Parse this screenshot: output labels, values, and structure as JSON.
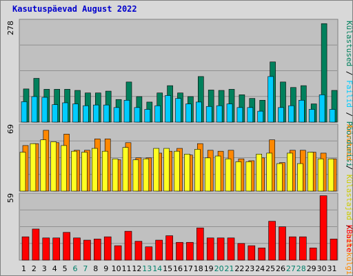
{
  "title": "Kasutuspäevad August 2022",
  "colors": {
    "background": "#d8d8d8",
    "panel": "#c0c0c0",
    "visits": "#00805c",
    "files": "#00ccff",
    "kbytes": "#ff0000",
    "pages": "#ff8800",
    "hits": "#ffff22",
    "weekday_tick": "#000000",
    "weekend_tick": "#00806a",
    "title": "#0000cc"
  },
  "chart_data": [
    {
      "type": "bar",
      "panel": "top",
      "ymax_label": "278",
      "ylim": [
        0,
        278
      ],
      "categories": [
        "1",
        "2",
        "3",
        "4",
        "5",
        "6",
        "7",
        "8",
        "9",
        "10",
        "11",
        "12",
        "13",
        "14",
        "15",
        "16",
        "17",
        "18",
        "19",
        "20",
        "21",
        "22",
        "23",
        "24",
        "25",
        "26",
        "27",
        "28",
        "29",
        "30",
        "31"
      ],
      "weekend_days": [
        "6",
        "7",
        "13",
        "14",
        "20",
        "21",
        "27",
        "28"
      ],
      "series": [
        {
          "name": "Külastused",
          "values": [
            91,
            120,
            90,
            90,
            90,
            87,
            80,
            80,
            85,
            62,
            110,
            70,
            55,
            80,
            100,
            80,
            70,
            125,
            88,
            87,
            90,
            75,
            65,
            60,
            165,
            110,
            95,
            100,
            50,
            270,
            87
          ]
        },
        {
          "name": "Failid",
          "values": [
            56,
            70,
            68,
            48,
            53,
            50,
            45,
            47,
            47,
            40,
            60,
            40,
            35,
            45,
            73,
            65,
            50,
            55,
            43,
            45,
            50,
            40,
            40,
            30,
            125,
            40,
            45,
            60,
            35,
            75,
            35
          ]
        }
      ],
      "side_labels": [
        "Külastused",
        "Failid",
        "Pöördumisi"
      ]
    },
    {
      "type": "bar",
      "panel": "middle",
      "ymax_label": "69",
      "ylim": [
        0,
        69
      ],
      "categories": [
        "1",
        "2",
        "3",
        "4",
        "5",
        "6",
        "7",
        "8",
        "9",
        "10",
        "11",
        "12",
        "13",
        "14",
        "15",
        "16",
        "17",
        "18",
        "19",
        "20",
        "21",
        "22",
        "23",
        "24",
        "25",
        "26",
        "27",
        "28",
        "29",
        "30",
        "31"
      ],
      "series": [
        {
          "name": "Külastajad",
          "values": [
            41,
            50,
            54,
            52,
            48,
            42,
            41,
            45,
            42,
            34,
            46,
            33,
            34,
            45,
            45,
            42,
            39,
            44,
            35,
            37,
            34,
            31,
            31,
            39,
            40,
            29,
            40,
            29,
            41,
            34,
            34
          ]
        },
        {
          "name": "Lehekülgi",
          "values": [
            48,
            50,
            64,
            51,
            60,
            43,
            43,
            55,
            55,
            33,
            51,
            35,
            35,
            40,
            42,
            45,
            38,
            50,
            43,
            42,
            43,
            34,
            32,
            35,
            54,
            30,
            43,
            43,
            41,
            40,
            34
          ]
        }
      ],
      "side_labels": [
        "Arvuteid",
        "Külastajad",
        "Lehekülgi"
      ]
    },
    {
      "type": "bar",
      "panel": "bottom",
      "ymax_label": "59",
      "ylim": [
        0,
        59
      ],
      "categories": [
        "1",
        "2",
        "3",
        "4",
        "5",
        "6",
        "7",
        "8",
        "9",
        "10",
        "11",
        "12",
        "13",
        "14",
        "15",
        "16",
        "17",
        "18",
        "19",
        "20",
        "21",
        "22",
        "23",
        "24",
        "25",
        "26",
        "27",
        "28",
        "29",
        "30",
        "31"
      ],
      "series": [
        {
          "name": "KBaite",
          "values": [
            21,
            28,
            20,
            20,
            25,
            20,
            18,
            19,
            21,
            13,
            26,
            17,
            12,
            18,
            22,
            16,
            16,
            29,
            20,
            20,
            20,
            15,
            13,
            11,
            35,
            30,
            21,
            21,
            11,
            58,
            19
          ]
        }
      ],
      "side_labels": [
        "KBaite"
      ]
    }
  ]
}
